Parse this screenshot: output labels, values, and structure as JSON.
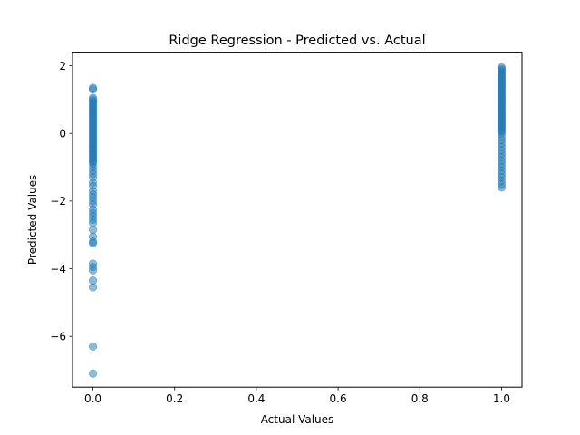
{
  "chart_data": {
    "type": "scatter",
    "title": "Ridge Regression - Predicted vs. Actual",
    "xlabel": "Actual Values",
    "ylabel": "Predicted Values",
    "xlim": [
      -0.05,
      1.05
    ],
    "ylim": [
      -7.5,
      2.4
    ],
    "grid": false,
    "x_ticks": [
      0.0,
      0.2,
      0.4,
      0.6,
      0.8,
      1.0
    ],
    "x_tick_labels": [
      "0.0",
      "0.2",
      "0.4",
      "0.6",
      "0.8",
      "1.0"
    ],
    "y_ticks": [
      -6,
      -4,
      -2,
      0,
      2
    ],
    "y_tick_labels": [
      "−6",
      "−4",
      "−2",
      "0",
      "2"
    ],
    "marker_color": "#1f77b4",
    "marker_alpha": 0.5,
    "series": [
      {
        "values_at_x0": {
          "x": 0.0,
          "y": [
            1.35,
            1.3,
            1.05,
            1.0,
            0.95,
            0.9,
            0.85,
            0.8,
            0.75,
            0.7,
            0.65,
            0.6,
            0.55,
            0.5,
            0.45,
            0.4,
            0.35,
            0.3,
            0.25,
            0.2,
            0.15,
            0.1,
            0.05,
            0.0,
            -0.05,
            -0.1,
            -0.15,
            -0.2,
            -0.25,
            -0.3,
            -0.35,
            -0.4,
            -0.45,
            -0.5,
            -0.55,
            -0.6,
            -0.65,
            -0.7,
            -0.75,
            -0.8,
            -0.85,
            -0.9,
            -1.0,
            -1.1,
            -1.2,
            -1.3,
            -1.45,
            -1.55,
            -1.7,
            -1.8,
            -1.9,
            -2.0,
            -2.1,
            -2.25,
            -2.35,
            -2.45,
            -2.55,
            -2.65,
            -2.85,
            -3.05,
            -3.2,
            -3.25,
            -3.85,
            -3.95,
            -4.05,
            -4.35,
            -4.55,
            -6.3,
            -7.1
          ]
        },
        "values_at_x1": {
          "x": 1.0,
          "y": [
            1.95,
            1.9,
            1.85,
            1.8,
            1.75,
            1.7,
            1.65,
            1.6,
            1.55,
            1.5,
            1.45,
            1.4,
            1.35,
            1.3,
            1.25,
            1.2,
            1.15,
            1.1,
            1.05,
            1.0,
            0.95,
            0.9,
            0.85,
            0.8,
            0.75,
            0.7,
            0.65,
            0.6,
            0.55,
            0.5,
            0.45,
            0.4,
            0.35,
            0.3,
            0.25,
            0.2,
            0.15,
            0.1,
            0.05,
            0.0,
            -0.1,
            -0.2,
            -0.3,
            -0.4,
            -0.5,
            -0.6,
            -0.7,
            -0.8,
            -0.9,
            -1.0,
            -1.1,
            -1.2,
            -1.3,
            -1.4,
            -1.5,
            -1.6
          ]
        }
      }
    ]
  }
}
